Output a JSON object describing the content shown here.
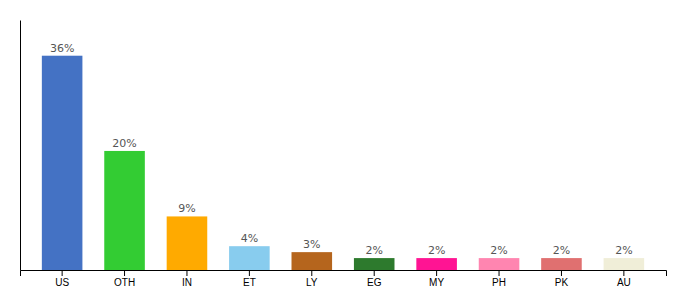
{
  "chart_data": {
    "type": "bar",
    "categories": [
      "US",
      "OTH",
      "IN",
      "ET",
      "LY",
      "EG",
      "MY",
      "PH",
      "PK",
      "AU"
    ],
    "values": [
      36,
      20,
      9,
      4,
      3,
      2,
      2,
      2,
      2,
      2
    ],
    "value_labels": [
      "36%",
      "20%",
      "9%",
      "4%",
      "3%",
      "2%",
      "2%",
      "2%",
      "2%",
      "2%"
    ],
    "colors": [
      "#4472c4",
      "#33cc33",
      "#ffaa00",
      "#88ccee",
      "#b5651d",
      "#2d7a2d",
      "#ff1493",
      "#ff85b0",
      "#e07070",
      "#f0eed8"
    ],
    "ylim": [
      0,
      42
    ],
    "data_labels": true,
    "tick_labels": "x"
  }
}
